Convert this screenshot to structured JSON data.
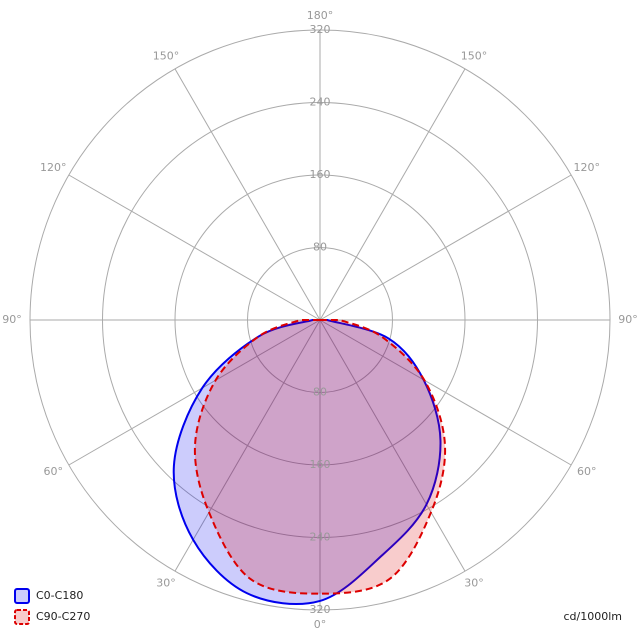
{
  "chart_data": {
    "type": "polar",
    "angles": [
      -90,
      -75,
      -60,
      -45,
      -30,
      -15,
      0,
      15,
      30,
      45,
      60,
      75,
      90
    ],
    "series": [
      {
        "name": "C0-C180",
        "color": "#0000ee",
        "dashed": false,
        "values": [
          8,
          70,
          150,
          228,
          280,
          312,
          310,
          268,
          235,
          188,
          132,
          78,
          8
        ]
      },
      {
        "name": "C90-C270",
        "color": "#dd0000",
        "dashed": true,
        "values": [
          22,
          70,
          133,
          195,
          245,
          296,
          302,
          296,
          245,
          195,
          133,
          70,
          22
        ]
      }
    ],
    "rlim": [
      0,
      320
    ],
    "rticks": [
      80,
      160,
      240,
      320
    ],
    "angle_ticks": [
      {
        "value": 0,
        "label": "0°"
      },
      {
        "value": 30,
        "label": "30°"
      },
      {
        "value": 60,
        "label": "60°"
      },
      {
        "value": 90,
        "label": "90°"
      },
      {
        "value": 120,
        "label": "120°"
      },
      {
        "value": 150,
        "label": "150°"
      },
      {
        "value": 180,
        "label": "180°"
      }
    ],
    "unit": "cd/1000lm"
  }
}
